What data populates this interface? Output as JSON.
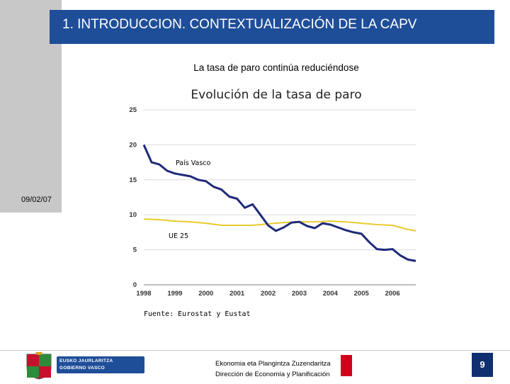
{
  "header": {
    "title": "1. INTRODUCCION. CONTEXTUALIZACIÓN DE LA CAPV"
  },
  "date": "09/02/07",
  "subtitle": "La tasa de paro continúa reduciéndose",
  "source": "Fuente: Eurostat y Eustat",
  "footer": {
    "line1": "Ekonomia eta Plangintza Zuzendaritza",
    "line2": "Dirección de Economía y Planificación",
    "page_number": "9",
    "logo_line1": "EUSKO JAURLARITZA",
    "logo_line2": "GOBIERNO VASCO"
  },
  "colors": {
    "header": "#1f4e99",
    "pais_vasco": "#1f2a7a",
    "ue25": "#e8cc2e",
    "accent_red": "#d0021b"
  },
  "chart_data": {
    "type": "line",
    "title": "Evolución de la tasa de paro",
    "xlabel": "",
    "ylabel": "",
    "xlim": [
      1998,
      2006.75
    ],
    "ylim": [
      0,
      25
    ],
    "yticks": [
      0,
      5,
      10,
      15,
      20,
      25
    ],
    "xticks": [
      1998,
      1999,
      2000,
      2001,
      2002,
      2003,
      2004,
      2005,
      2006
    ],
    "series": [
      {
        "name": "País Vasco",
        "x": [
          1998,
          1998.25,
          1998.5,
          1998.75,
          1999,
          1999.25,
          1999.5,
          1999.75,
          2000,
          2000.25,
          2000.5,
          2000.75,
          2001,
          2001.25,
          2001.5,
          2001.75,
          2002,
          2002.25,
          2002.5,
          2002.75,
          2003,
          2003.25,
          2003.5,
          2003.75,
          2004,
          2004.25,
          2004.5,
          2004.75,
          2005,
          2005.25,
          2005.5,
          2005.75,
          2006,
          2006.25,
          2006.5,
          2006.75
        ],
        "values": [
          20.0,
          17.5,
          17.2,
          16.3,
          15.9,
          15.7,
          15.5,
          15.0,
          14.8,
          14.0,
          13.6,
          12.6,
          12.3,
          11.0,
          11.5,
          10.0,
          8.5,
          7.7,
          8.2,
          8.9,
          9.0,
          8.4,
          8.1,
          8.8,
          8.6,
          8.2,
          7.8,
          7.5,
          7.3,
          6.1,
          5.1,
          5.0,
          5.1,
          4.2,
          3.6,
          3.4
        ]
      },
      {
        "name": "UE 25",
        "x": [
          1998,
          1998.5,
          1999,
          1999.5,
          2000,
          2000.5,
          2001,
          2001.5,
          2002,
          2002.5,
          2003,
          2003.5,
          2004,
          2004.5,
          2005,
          2005.5,
          2006,
          2006.5,
          2006.75
        ],
        "values": [
          9.4,
          9.3,
          9.1,
          9.0,
          8.8,
          8.5,
          8.5,
          8.5,
          8.7,
          8.9,
          9.0,
          9.0,
          9.1,
          9.0,
          8.8,
          8.6,
          8.5,
          7.9,
          7.7
        ]
      }
    ]
  }
}
